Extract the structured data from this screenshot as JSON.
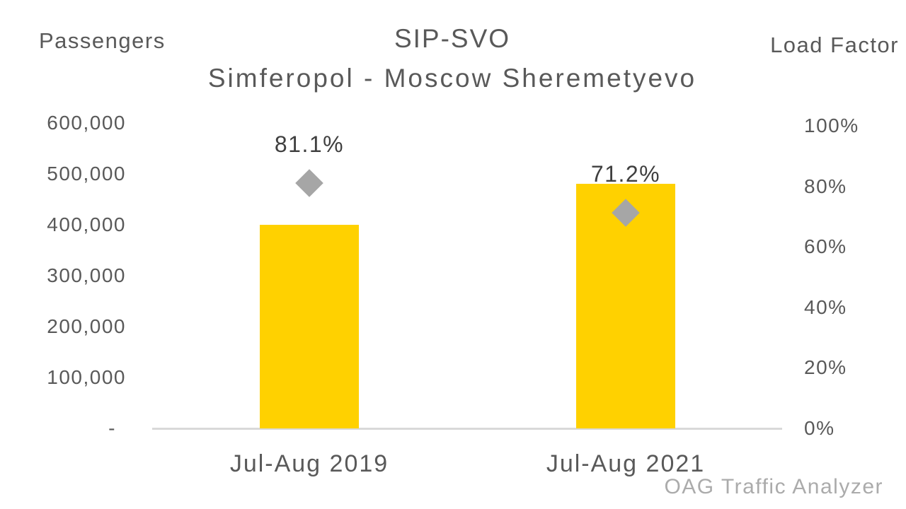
{
  "titles": {
    "chart_title": "SIP-SVO",
    "chart_subtitle": "Simferopol - Moscow Sheremetyevo",
    "left_axis_title": "Passengers",
    "right_axis_title": "Load Factor"
  },
  "watermark": "OAG Traffic Analyzer",
  "colors": {
    "bar_fill": "#FFD100",
    "marker_fill": "#A6A6A6",
    "axis_text": "#595959",
    "data_label_text": "#3F3F3F",
    "baseline": "#D9D9D9",
    "watermark_text": "#ABABAB",
    "background": "#FFFFFF"
  },
  "chart_data": {
    "type": "bar",
    "title": "SIP-SVO",
    "subtitle": "Simferopol - Moscow Sheremetyevo",
    "categories": [
      "Jul-Aug 2019",
      "Jul-Aug 2021"
    ],
    "series": [
      {
        "name": "Passengers",
        "type": "bar",
        "axis": "left",
        "values": [
          400000,
          481000
        ]
      },
      {
        "name": "Load Factor",
        "type": "scatter",
        "marker": "diamond",
        "axis": "right",
        "values": [
          81.1,
          71.2
        ],
        "point_labels": [
          "81.1%",
          "71.2%"
        ]
      }
    ],
    "left_axis": {
      "label": "Passengers",
      "min": 0,
      "max": 600000,
      "tick_labels": [
        "600,000",
        "500,000",
        "400,000",
        "300,000",
        "200,000",
        "100,000",
        "-"
      ]
    },
    "right_axis": {
      "label": "Load Factor",
      "min": 0,
      "max": 100,
      "tick_labels": [
        "100%",
        "80%",
        "60%",
        "40%",
        "20%",
        "0%"
      ]
    },
    "grid": false,
    "legend": false
  }
}
